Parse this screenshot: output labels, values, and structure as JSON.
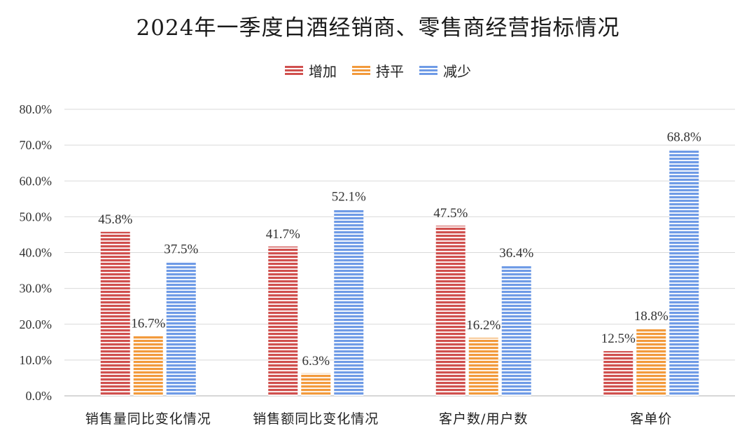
{
  "chart_data": {
    "type": "bar",
    "title": "2024年一季度白酒经销商、零售商经营指标情况",
    "categories": [
      "销售量同比变化情况",
      "销售额同比变化情况",
      "客户数/用户数",
      "客单价"
    ],
    "series": [
      {
        "name": "增加",
        "color": "#d0504e",
        "values": [
          45.8,
          41.7,
          47.5,
          12.5
        ]
      },
      {
        "name": "持平",
        "color": "#f29a3c",
        "values": [
          16.7,
          6.3,
          16.2,
          18.8
        ]
      },
      {
        "name": "减少",
        "color": "#6f9be6",
        "values": [
          37.5,
          52.1,
          36.4,
          68.8
        ]
      }
    ],
    "value_labels": [
      [
        "45.8%",
        "41.7%",
        "47.5%",
        "12.5%"
      ],
      [
        "16.7%",
        "6.3%",
        "16.2%",
        "18.8%"
      ],
      [
        "37.5%",
        "52.1%",
        "36.4%",
        "68.8%"
      ]
    ],
    "ylim": [
      0,
      80
    ],
    "yticks": [
      "0.0%",
      "10.0%",
      "20.0%",
      "30.0%",
      "40.0%",
      "50.0%",
      "60.0%",
      "70.0%",
      "80.0%"
    ],
    "grid": true,
    "legend_position": "top-center"
  }
}
